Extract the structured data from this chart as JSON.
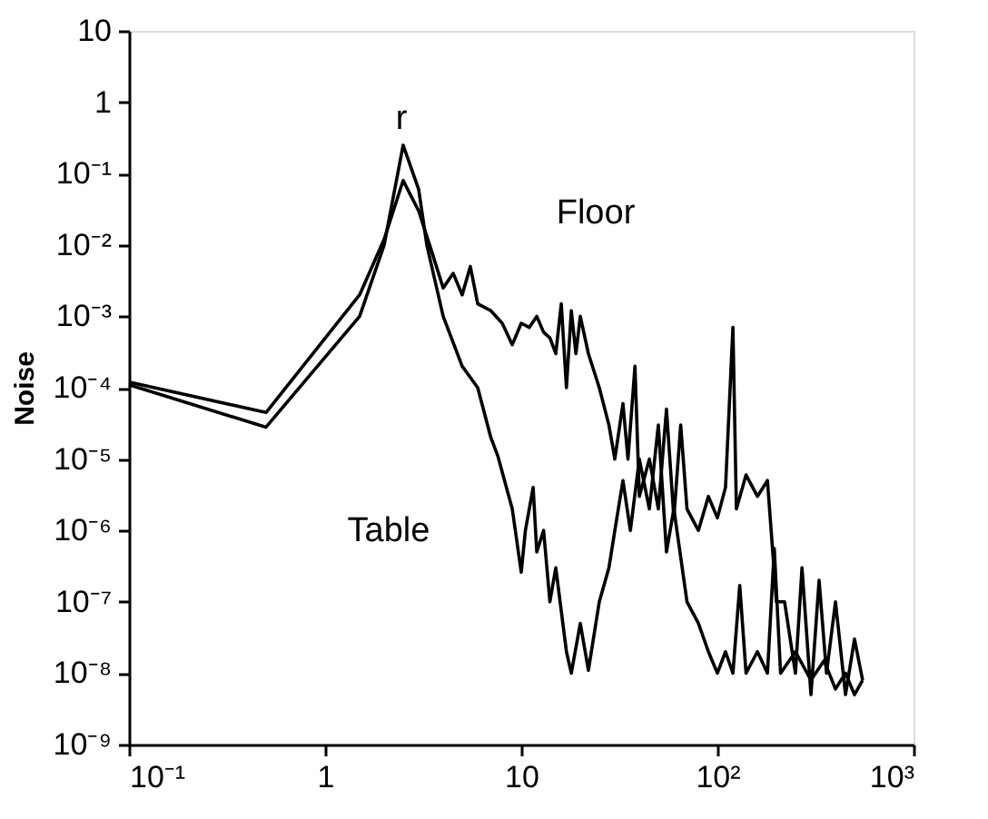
{
  "chart_data": {
    "type": "line",
    "ylabel": "Noise",
    "log": "xy",
    "grid": false,
    "xlim": [
      0.1,
      1000
    ],
    "ylim": [
      1e-09,
      10
    ],
    "xticks": [
      {
        "value": 0.1,
        "label": "10⁻¹"
      },
      1,
      10,
      {
        "value": 100,
        "label": "10²"
      },
      {
        "value": 1000,
        "label": "10³"
      }
    ],
    "yticks": [
      {
        "value": 1e-09,
        "label": "10⁻⁹"
      },
      {
        "value": 1e-08,
        "label": "10⁻⁸"
      },
      {
        "value": 1e-07,
        "label": "10⁻⁷"
      },
      {
        "value": 1e-06,
        "label": "10⁻⁶"
      },
      {
        "value": 1e-05,
        "label": "10⁻⁵"
      },
      {
        "value": 0.0001,
        "label": "10⁻⁴"
      },
      {
        "value": 0.001,
        "label": "10⁻³"
      },
      {
        "value": 0.01,
        "label": "10⁻²"
      },
      {
        "value": 0.1,
        "label": "10⁻¹"
      },
      1,
      10
    ],
    "annotations": [
      "r"
    ],
    "series": [
      {
        "name": "Floor",
        "color": "#000000",
        "x": [
          0.1,
          0.5,
          1.5,
          2,
          2.5,
          3,
          3.5,
          4,
          4.5,
          5,
          5.5,
          6,
          7,
          8,
          9,
          10,
          11,
          12,
          13,
          14,
          15,
          16,
          17,
          18,
          19,
          20,
          22,
          25,
          28,
          30,
          33,
          35,
          38,
          40,
          45,
          50,
          55,
          60,
          65,
          70,
          80,
          90,
          100,
          110,
          120,
          125,
          140,
          160,
          180,
          200,
          220,
          250,
          270,
          300,
          330,
          360,
          400,
          450,
          500,
          550
        ],
        "values": [
          0.00012,
          4.5e-05,
          0.002,
          0.012,
          0.08,
          0.03,
          0.008,
          0.0025,
          0.004,
          0.002,
          0.005,
          0.0015,
          0.0012,
          0.0008,
          0.0004,
          0.0008,
          0.0007,
          0.001,
          0.0006,
          0.0005,
          0.0003,
          0.0015,
          0.0001,
          0.0012,
          0.0003,
          0.001,
          0.0003,
          0.0001,
          3e-05,
          1e-05,
          6e-05,
          1e-05,
          0.0002,
          3e-06,
          1e-05,
          2e-06,
          5e-05,
          1.5e-06,
          3e-05,
          2e-06,
          1e-06,
          3e-06,
          1.5e-06,
          4e-06,
          0.0007,
          2e-06,
          6e-06,
          3e-06,
          5e-06,
          1e-07,
          1e-07,
          1e-08,
          3e-07,
          5e-09,
          2e-07,
          1e-08,
          1e-07,
          5e-09,
          3e-08,
          8e-09
        ]
      },
      {
        "name": "Table",
        "color": "#000000",
        "x": [
          0.1,
          0.5,
          1.5,
          2,
          2.5,
          3,
          3.3,
          4,
          5,
          6,
          7,
          7.6,
          9,
          10,
          10.5,
          11.5,
          12,
          13,
          14,
          15,
          17,
          18,
          20,
          22,
          25,
          28,
          30,
          33,
          36,
          40,
          45,
          50,
          55,
          60,
          70,
          80,
          90,
          100,
          110,
          120,
          130,
          140,
          160,
          180,
          195,
          210,
          250,
          300,
          350,
          400,
          450,
          500,
          550
        ],
        "values": [
          0.00011,
          2.8e-05,
          0.001,
          0.01,
          0.25,
          0.06,
          0.01,
          0.001,
          0.0002,
          0.0001,
          2e-05,
          1.1e-05,
          2e-06,
          2.6e-07,
          1e-06,
          4e-06,
          5e-07,
          1e-06,
          1e-07,
          3e-07,
          2e-08,
          1e-08,
          5e-08,
          1.1e-08,
          1e-07,
          3e-07,
          1e-06,
          5e-06,
          1e-06,
          1e-05,
          2e-06,
          3e-05,
          5e-07,
          2e-06,
          1e-07,
          5e-08,
          2e-08,
          1e-08,
          2e-08,
          1e-08,
          1.7e-07,
          1e-08,
          2e-08,
          1e-08,
          5.6e-07,
          1e-08,
          2e-08,
          8e-09,
          1.5e-08,
          6e-09,
          1e-08,
          5e-09,
          8e-09
        ]
      }
    ]
  }
}
